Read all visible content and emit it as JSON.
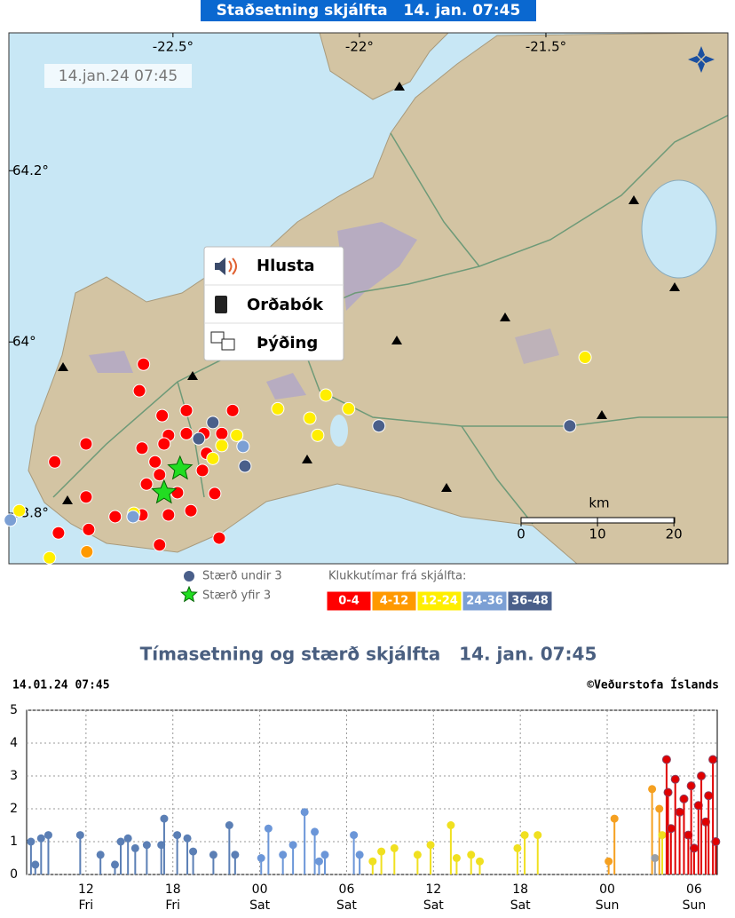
{
  "map": {
    "title": "Staðsetning skjálfta   14. jan. 07:45",
    "timestamp": "14.jan.24 07:45",
    "xlim": [
      -22.94,
      -21.012
    ],
    "ylim": [
      63.741,
      64.361
    ],
    "lon_ticks": [
      {
        "value": -22.5,
        "label": "-22.5°"
      },
      {
        "value": -22,
        "label": "-22°"
      },
      {
        "value": -21.5,
        "label": "-21.5°"
      }
    ],
    "lat_ticks": [
      {
        "value": 64.2,
        "label": "64.2°"
      },
      {
        "value": 64,
        "label": "64°"
      },
      {
        "value": 63.8,
        "label": "63.8°"
      }
    ],
    "scale": {
      "unit": "km",
      "ticks": [
        0,
        10,
        20
      ]
    },
    "quakes": {
      "lon": [
        -22.579,
        -22.59,
        -22.529,
        -22.464,
        -22.34,
        -22.733,
        -22.817,
        -22.733,
        -22.807,
        -22.726,
        -22.655,
        -22.536,
        -22.376,
        -22.388,
        -22.421,
        -22.512,
        -22.464,
        -22.548,
        -22.571,
        -22.452,
        -22.512,
        -22.583,
        -22.369,
        -22.41,
        -22.488,
        -22.524,
        -22.417,
        -22.583,
        -22.536,
        -22.09,
        -22.219,
        -22.133,
        -22.029,
        -22.112,
        -22.329,
        -22.369,
        -22.393,
        -22.912,
        -22.831,
        -22.605,
        -21.395,
        -22.731,
        -22.312,
        -22.607,
        -22.936,
        -22.393,
        -21.948,
        -21.436,
        -22.307,
        -22.431
      ],
      "lat": [
        63.974,
        63.943,
        63.914,
        63.92,
        63.92,
        63.881,
        63.86,
        63.819,
        63.777,
        63.781,
        63.796,
        63.763,
        63.771,
        63.823,
        63.85,
        63.891,
        63.893,
        63.86,
        63.834,
        63.803,
        63.798,
        63.798,
        63.893,
        63.87,
        63.824,
        63.881,
        63.893,
        63.876,
        63.845,
        63.938,
        63.922,
        63.911,
        63.922,
        63.891,
        63.891,
        63.879,
        63.864,
        63.803,
        63.748,
        63.8,
        63.982,
        63.755,
        63.878,
        63.796,
        63.792,
        63.906,
        63.902,
        63.902,
        63.855,
        63.887
      ],
      "color": [
        "#ff0000",
        "#ff0000",
        "#ff0000",
        "#ff0000",
        "#ff0000",
        "#ff0000",
        "#ff0000",
        "#ff0000",
        "#ff0000",
        "#ff0000",
        "#ff0000",
        "#ff0000",
        "#ff0000",
        "#ff0000",
        "#ff0000",
        "#ff0000",
        "#ff0000",
        "#ff0000",
        "#ff0000",
        "#ff0000",
        "#ff0000",
        "#ff0000",
        "#ff0000",
        "#ff0000",
        "#ff0000",
        "#ff0000",
        "#ff0000",
        "#ff0000",
        "#ff0000",
        "#ffee00",
        "#ffee00",
        "#ffee00",
        "#ffee00",
        "#ffee00",
        "#ffee00",
        "#ffee00",
        "#ffee00",
        "#ffee00",
        "#ffee00",
        "#ffee00",
        "#ffee00",
        "#ff9900",
        "#7b9fd4",
        "#7b9fd4",
        "#7b9fd4",
        "#4a5f8a",
        "#4a5f8a",
        "#4a5f8a",
        "#4a5f8a",
        "#4a5f8a"
      ]
    },
    "large_quakes": {
      "lon": [
        -22.481,
        -22.524
      ],
      "lat": [
        63.852,
        63.824
      ],
      "color": "#22dd22"
    },
    "menu": [
      "Hlusta",
      "Orðabók",
      "Þýðing"
    ],
    "legend": {
      "small": "Stærð undir 3",
      "large": "Stærð yfir 3",
      "small_color": "#4a5f8a",
      "title": "Klukkutímar frá skjálfta:",
      "bins": [
        {
          "label": "0-4",
          "color": "#ff0000"
        },
        {
          "label": "4-12",
          "color": "#ff9900"
        },
        {
          "label": "12-24",
          "color": "#ffee00"
        },
        {
          "label": "24-36",
          "color": "#7b9fd4"
        },
        {
          "label": "36-48",
          "color": "#4a5f8a"
        }
      ]
    }
  },
  "chart_data": {
    "type": "stem",
    "title": "Tímasetning og stærð skjálfta   14. jan. 07:45",
    "timestamp": "14.01.24 07:45",
    "credit": "©Veðurstofa Íslands",
    "xlim": [
      7.9,
      55.6
    ],
    "ylim": [
      0,
      5
    ],
    "yticks": [
      0,
      1,
      2,
      3,
      4,
      5
    ],
    "xticks": [
      {
        "value": 12,
        "label": "12",
        "day": "Fri"
      },
      {
        "value": 18,
        "label": "18",
        "day": "Fri"
      },
      {
        "value": 24,
        "label": "00",
        "day": "Sat"
      },
      {
        "value": 30,
        "label": "06",
        "day": "Sat"
      },
      {
        "value": 36,
        "label": "12",
        "day": "Sat"
      },
      {
        "value": 42,
        "label": "18",
        "day": "Sat"
      },
      {
        "value": 48,
        "label": "00",
        "day": "Sun"
      },
      {
        "value": 54,
        "label": "06",
        "day": "Sun"
      }
    ],
    "grid": true,
    "x": [
      8.2,
      8.5,
      8.9,
      9.4,
      11.6,
      13.0,
      14.0,
      14.4,
      14.9,
      15.4,
      16.2,
      17.2,
      17.4,
      18.3,
      19.0,
      19.4,
      20.8,
      21.9,
      22.3,
      24.1,
      24.6,
      25.6,
      26.3,
      27.1,
      27.8,
      28.1,
      28.5,
      30.5,
      30.9,
      31.8,
      32.4,
      33.3,
      34.9,
      35.8,
      37.2,
      37.6,
      38.6,
      39.2,
      41.8,
      42.3,
      43.2,
      48.1,
      48.5,
      51.1,
      51.3,
      51.6,
      51.8,
      52.1,
      52.2,
      52.4,
      52.7,
      53.0,
      53.3,
      53.6,
      53.8,
      54.0,
      54.3,
      54.5,
      54.8,
      55.0,
      55.3,
      55.5
    ],
    "values": [
      1.0,
      0.3,
      1.1,
      1.2,
      1.2,
      0.6,
      0.3,
      1.0,
      1.1,
      0.8,
      0.9,
      0.9,
      1.7,
      1.2,
      1.1,
      0.7,
      0.6,
      1.5,
      0.6,
      0.5,
      1.4,
      0.6,
      0.9,
      1.9,
      1.3,
      0.4,
      0.6,
      1.2,
      0.6,
      0.4,
      0.7,
      0.8,
      0.6,
      0.9,
      1.5,
      0.5,
      0.6,
      0.4,
      0.8,
      1.2,
      1.2,
      0.4,
      1.7,
      2.6,
      0.5,
      2.0,
      1.2,
      3.5,
      2.5,
      1.4,
      2.9,
      1.9,
      2.3,
      1.2,
      2.7,
      0.8,
      2.1,
      3.0,
      1.6,
      2.4,
      3.5,
      1.0
    ],
    "colors": [
      "#5b7fb5",
      "#5b7fb5",
      "#5b7fb5",
      "#5b7fb5",
      "#5b7fb5",
      "#5b7fb5",
      "#5b7fb5",
      "#5b7fb5",
      "#5b7fb5",
      "#5b7fb5",
      "#5b7fb5",
      "#5b7fb5",
      "#5b7fb5",
      "#5b7fb5",
      "#5b7fb5",
      "#5b7fb5",
      "#5b7fb5",
      "#5b7fb5",
      "#5b7fb5",
      "#6b96d8",
      "#6b96d8",
      "#6b96d8",
      "#6b96d8",
      "#6b96d8",
      "#6b96d8",
      "#6b96d8",
      "#6b96d8",
      "#6b96d8",
      "#6b96d8",
      "#f0e020",
      "#f0e020",
      "#f0e020",
      "#f0e020",
      "#f0e020",
      "#f0e020",
      "#f0e020",
      "#f0e020",
      "#f0e020",
      "#f0e020",
      "#f0e020",
      "#f0e020",
      "#f5a020",
      "#f5a020",
      "#f5a020",
      "#9aa0a8",
      "#f5a020",
      "#f0e020",
      "#e00000",
      "#e00000",
      "#e00000",
      "#e00000",
      "#e00000",
      "#e00000",
      "#e00000",
      "#e00000",
      "#e00000",
      "#e00000",
      "#e00000",
      "#e00000",
      "#e00000",
      "#e00000",
      "#e00000"
    ]
  }
}
